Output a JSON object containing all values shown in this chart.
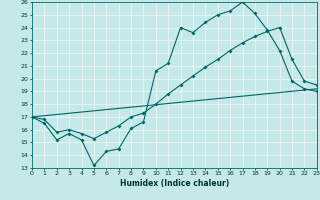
{
  "xlabel": "Humidex (Indice chaleur)",
  "xlim": [
    0,
    23
  ],
  "ylim": [
    13,
    26
  ],
  "yticks": [
    13,
    14,
    15,
    16,
    17,
    18,
    19,
    20,
    21,
    22,
    23,
    24,
    25,
    26
  ],
  "xticks": [
    0,
    1,
    2,
    3,
    4,
    5,
    6,
    7,
    8,
    9,
    10,
    11,
    12,
    13,
    14,
    15,
    16,
    17,
    18,
    19,
    20,
    21,
    22,
    23
  ],
  "bg_color": "#c5e8e8",
  "grid_color": "#e8f4f4",
  "line_color": "#006666",
  "line1_x": [
    0,
    1,
    2,
    3,
    4,
    5,
    6,
    7,
    8,
    9,
    10,
    11,
    12,
    13,
    14,
    15,
    16,
    17,
    18,
    19,
    20,
    21,
    22,
    23
  ],
  "line1_y": [
    17.0,
    16.5,
    15.2,
    15.7,
    15.2,
    13.2,
    14.3,
    14.5,
    16.1,
    16.6,
    20.6,
    21.2,
    24.0,
    23.6,
    24.4,
    25.0,
    25.3,
    26.0,
    25.1,
    23.8,
    22.2,
    19.8,
    19.2,
    19.0
  ],
  "line2_x": [
    0,
    1,
    2,
    3,
    4,
    5,
    6,
    7,
    8,
    9,
    10,
    11,
    12,
    13,
    14,
    15,
    16,
    17,
    18,
    19,
    20,
    21,
    22,
    23
  ],
  "line2_y": [
    17.0,
    16.8,
    15.8,
    16.0,
    15.7,
    15.3,
    15.8,
    16.3,
    17.0,
    17.3,
    18.0,
    18.8,
    19.5,
    20.2,
    20.9,
    21.5,
    22.2,
    22.8,
    23.3,
    23.7,
    24.0,
    21.5,
    19.8,
    19.5
  ],
  "line3_x": [
    0,
    23
  ],
  "line3_y": [
    17.0,
    19.2
  ]
}
